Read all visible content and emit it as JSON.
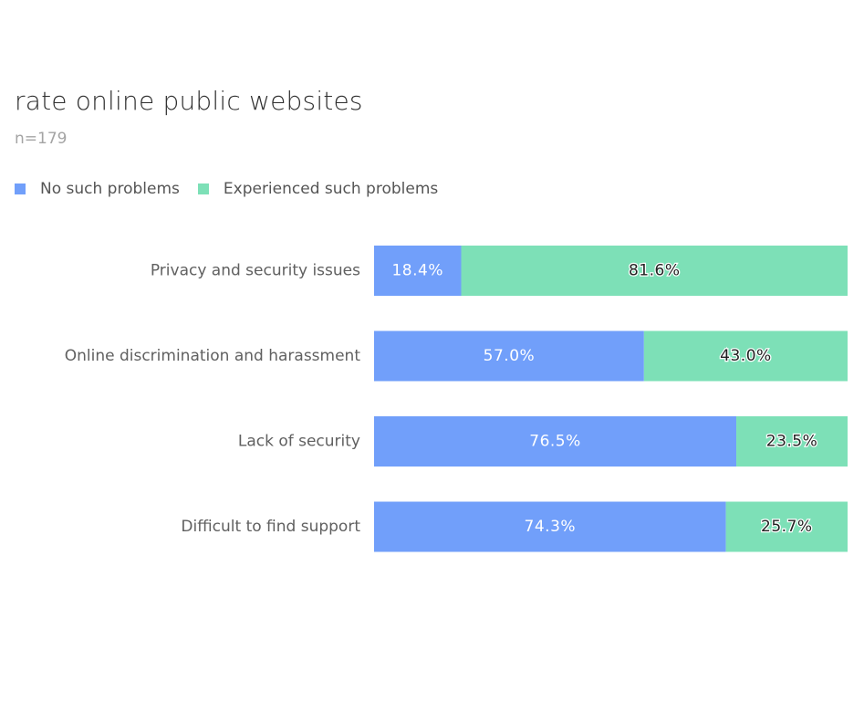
{
  "chart_data": {
    "type": "bar",
    "orientation": "horizontal",
    "stacked": true,
    "title": "rate online public websites",
    "subtitle": "n=179",
    "legend_placement": "top-left",
    "grid": false,
    "xlim": [
      0,
      100
    ],
    "categories": [
      "Privacy and security issues",
      "Online discrimination and harassment",
      "Lack of security",
      "Difficult to find support"
    ],
    "series": [
      {
        "name": "No such problems",
        "color": "#719ffa",
        "values": [
          18.4,
          57.0,
          76.5,
          74.3
        ],
        "labels": [
          "18.4%",
          "57.0%",
          "76.5%",
          "74.3%"
        ]
      },
      {
        "name": "Experienced such problems",
        "color": "#7de0b7",
        "values": [
          81.6,
          43.0,
          23.5,
          25.7
        ],
        "labels": [
          "81.6%",
          "43.0%",
          "23.5%",
          "25.7%"
        ]
      }
    ]
  }
}
